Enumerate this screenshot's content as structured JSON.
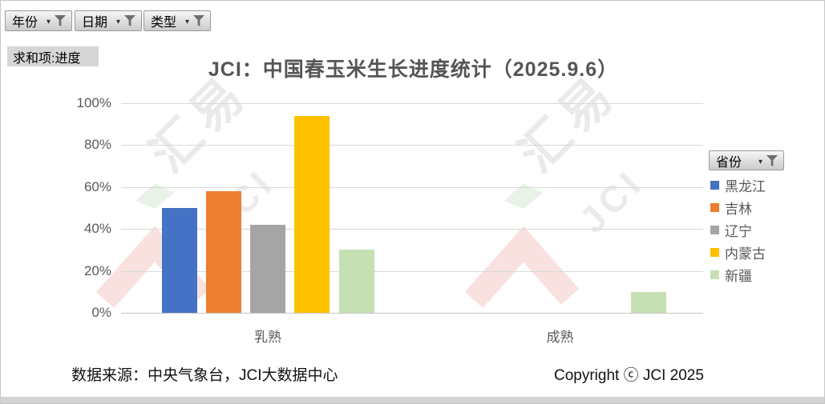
{
  "toolbar": {
    "filters": [
      {
        "label": "年份"
      },
      {
        "label": "日期"
      },
      {
        "label": "类型"
      }
    ],
    "value_field_label": "求和项:进度"
  },
  "legend": {
    "field_label": "省份"
  },
  "chart_data": {
    "type": "bar",
    "title": "JCI：中国春玉米生长进度统计（2025.9.6）",
    "categories": [
      "乳熟",
      "成熟"
    ],
    "series": [
      {
        "name": "黑龙江",
        "color": "#4472C4",
        "values": [
          50,
          null
        ]
      },
      {
        "name": "吉林",
        "color": "#ED7D31",
        "values": [
          58,
          null
        ]
      },
      {
        "name": "辽宁",
        "color": "#A5A5A5",
        "values": [
          42,
          null
        ]
      },
      {
        "name": "内蒙古",
        "color": "#FFC000",
        "values": [
          94,
          null
        ]
      },
      {
        "name": "新疆",
        "color": "#C6E0B4",
        "values": [
          30,
          10
        ]
      }
    ],
    "ylim": [
      0,
      100
    ],
    "y_tick_step": 20,
    "y_tick_labels": [
      "0%",
      "20%",
      "40%",
      "60%",
      "80%",
      "100%"
    ],
    "grid": true,
    "legend_position": "right"
  },
  "watermark": {
    "cn": "汇易",
    "en": "JCI"
  },
  "footer": {
    "source": "数据来源：中央气象台，JCI大数据中心",
    "copyright": "Copyright ⓒ JCI 2025"
  }
}
